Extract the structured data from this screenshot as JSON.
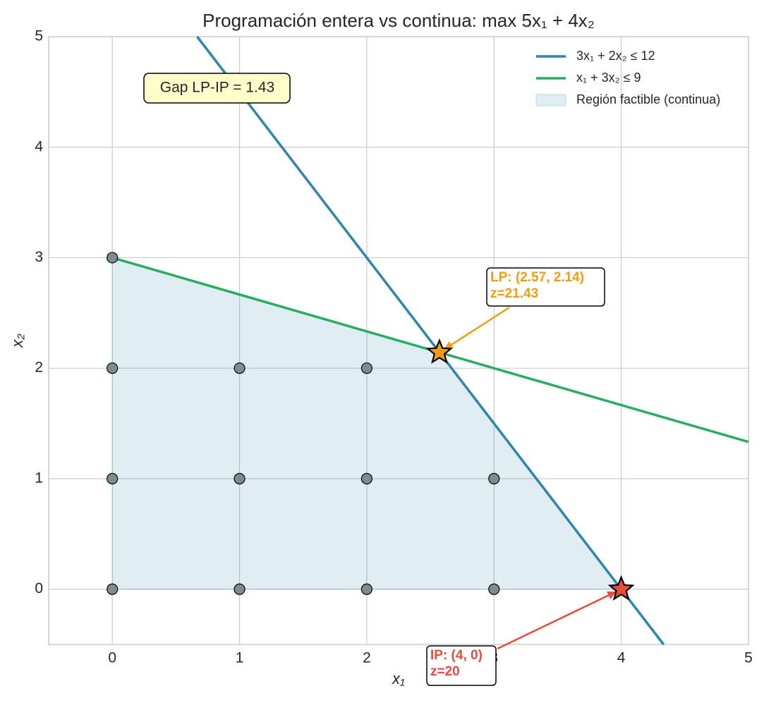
{
  "chart_data": {
    "type": "lp-plot",
    "title": "Programación entera vs continua: max 5x₁ + 4x₂",
    "xlabel": "x₁",
    "ylabel": "x₂",
    "xlim": [
      -0.5,
      5
    ],
    "ylim": [
      -0.5,
      5
    ],
    "xticks": [
      0,
      1,
      2,
      3,
      4,
      5
    ],
    "yticks": [
      0,
      1,
      2,
      3,
      4,
      5
    ],
    "grid": true,
    "legend": "upper right",
    "series": [
      {
        "name": "3x₁ + 2x₂ ≤ 12",
        "color": "#2e86ab",
        "x": [
          0.667,
          4.333
        ],
        "values": [
          5,
          -0.5
        ]
      },
      {
        "name": "x₁ + 3x₂ ≤ 9",
        "color": "#27ae60",
        "x": [
          0,
          5
        ],
        "values": [
          3,
          1.333
        ]
      }
    ],
    "region": {
      "name": "Región factible (continua)",
      "color": "#2e86ab",
      "x": [
        0,
        0,
        2.571,
        4
      ],
      "values": [
        0,
        3,
        2.143,
        0
      ]
    },
    "points": {
      "color": "#7f8c8d",
      "x": [
        0,
        0,
        0,
        0,
        1,
        1,
        1,
        2,
        2,
        2,
        3,
        3
      ],
      "values": [
        0,
        1,
        2,
        3,
        0,
        1,
        2,
        0,
        1,
        2,
        0,
        1
      ]
    },
    "optima": [
      {
        "label_lines": [
          "LP: (2.57, 2.14)",
          "z=21.43"
        ],
        "x": 2.571,
        "value": 2.143,
        "color": "#f39c12"
      },
      {
        "label_lines": [
          "IP: (4, 0)",
          "z=20"
        ],
        "x": 4,
        "value": 0,
        "color": "#e74c3c"
      }
    ],
    "annotations": [
      "Gap LP-IP = 1.43"
    ]
  }
}
